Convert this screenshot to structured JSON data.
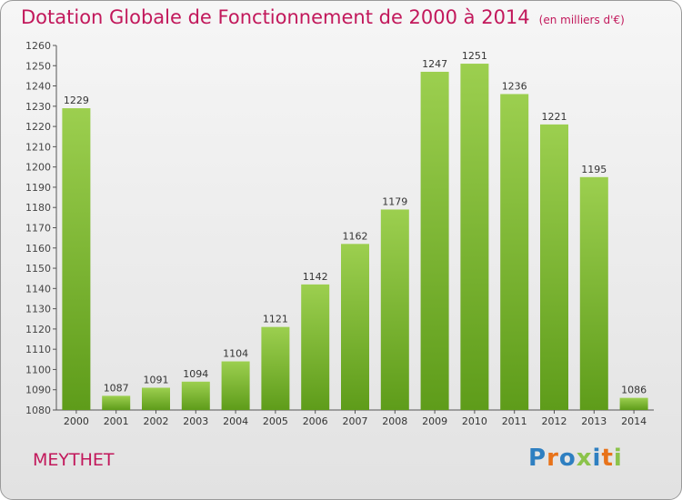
{
  "header": {
    "title": "Dotation Globale de Fonctionnement de 2000 à 2014",
    "subtitle": "(en milliers d'€)"
  },
  "footer": {
    "place": "MEYTHET",
    "logo": "Proxiti"
  },
  "colors": {
    "title": "#c2185b",
    "bar_top": "#9ccf4f",
    "bar_bottom": "#5e9c1a",
    "logo_letters": [
      "#2e7fc1",
      "#e8731a",
      "#2e7fc1",
      "#8bc34a",
      "#2e7fc1",
      "#e8731a",
      "#8bc34a"
    ]
  },
  "chart_data": {
    "type": "bar",
    "title": "Dotation Globale de Fonctionnement de 2000 à 2014",
    "subtitle": "(en milliers d'€)",
    "xlabel": "",
    "ylabel": "",
    "categories": [
      "2000",
      "2001",
      "2002",
      "2003",
      "2004",
      "2005",
      "2006",
      "2007",
      "2008",
      "2009",
      "2010",
      "2011",
      "2012",
      "2013",
      "2014"
    ],
    "values": [
      1229,
      1087,
      1091,
      1094,
      1104,
      1121,
      1142,
      1162,
      1179,
      1247,
      1251,
      1236,
      1221,
      1195,
      1086
    ],
    "ylim": [
      1080,
      1260
    ],
    "yticks": [
      1080,
      1090,
      1100,
      1110,
      1120,
      1130,
      1140,
      1150,
      1160,
      1170,
      1180,
      1190,
      1200,
      1210,
      1220,
      1230,
      1240,
      1250,
      1260
    ],
    "grid": false,
    "data_labels": true
  }
}
